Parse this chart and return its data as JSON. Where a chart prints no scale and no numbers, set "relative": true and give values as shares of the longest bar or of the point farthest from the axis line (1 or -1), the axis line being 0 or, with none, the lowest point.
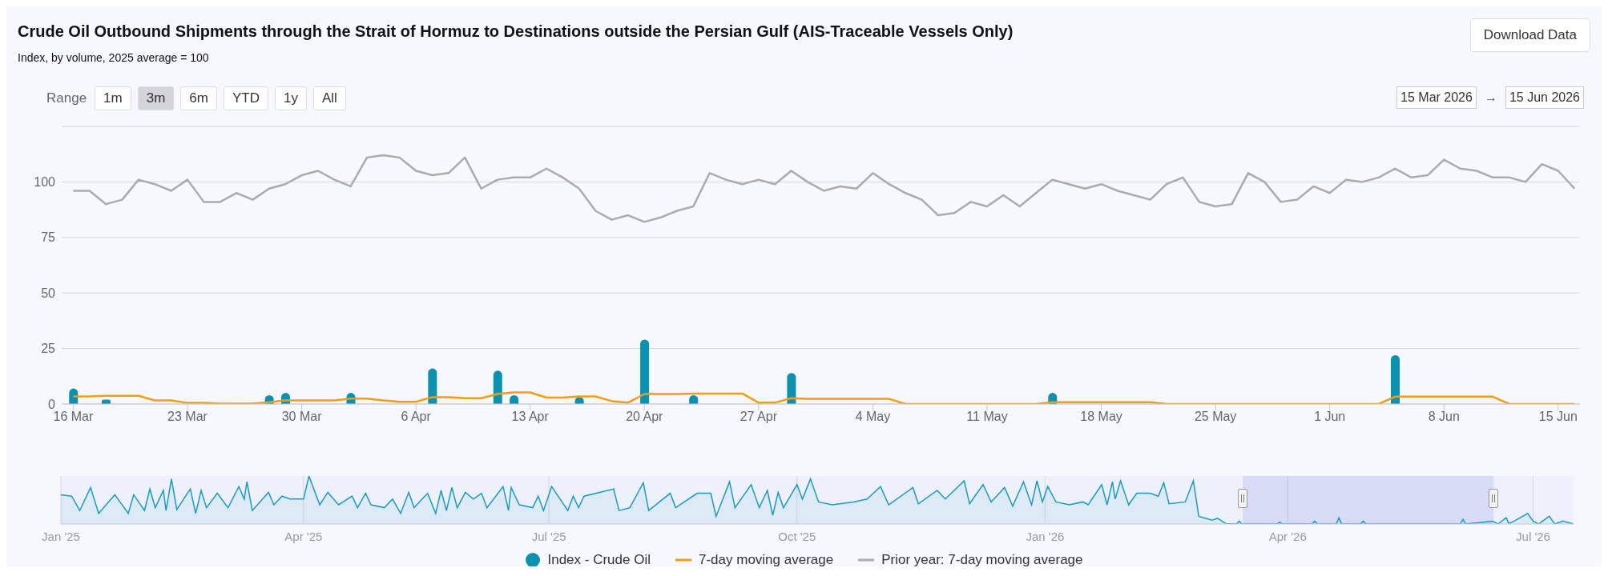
{
  "chart_data": [
    {
      "type": "bar",
      "title": "Crude Oil Outbound Shipments through the Strait of Hormuz to Destinations outside the Persian Gulf (AIS-Traceable Vessels Only)",
      "subtitle": "Index, by volume, 2025 average = 100",
      "annotations": [
        "Download Data",
        "Range",
        "1m",
        "3m",
        "6m",
        "YTD",
        "1y",
        "All",
        "15 Mar 2026",
        "→",
        "15 Jun 2026"
      ],
      "x": [
        "2026-03-16",
        "2026-03-17",
        "2026-03-18",
        "2026-03-19",
        "2026-03-20",
        "2026-03-21",
        "2026-03-22",
        "2026-03-23",
        "2026-03-24",
        "2026-03-25",
        "2026-03-26",
        "2026-03-27",
        "2026-03-28",
        "2026-03-29",
        "2026-03-30",
        "2026-03-31",
        "2026-04-01",
        "2026-04-02",
        "2026-04-03",
        "2026-04-04",
        "2026-04-05",
        "2026-04-06",
        "2026-04-07",
        "2026-04-08",
        "2026-04-09",
        "2026-04-10",
        "2026-04-11",
        "2026-04-12",
        "2026-04-13",
        "2026-04-14",
        "2026-04-15",
        "2026-04-16",
        "2026-04-17",
        "2026-04-18",
        "2026-04-19",
        "2026-04-20",
        "2026-04-21",
        "2026-04-22",
        "2026-04-23",
        "2026-04-24",
        "2026-04-25",
        "2026-04-26",
        "2026-04-27",
        "2026-04-28",
        "2026-04-29",
        "2026-04-30",
        "2026-05-01",
        "2026-05-02",
        "2026-05-03",
        "2026-05-04",
        "2026-05-05",
        "2026-05-06",
        "2026-05-07",
        "2026-05-08",
        "2026-05-09",
        "2026-05-10",
        "2026-05-11",
        "2026-05-12",
        "2026-05-13",
        "2026-05-14",
        "2026-05-15",
        "2026-05-16",
        "2026-05-17",
        "2026-05-18",
        "2026-05-19",
        "2026-05-20",
        "2026-05-21",
        "2026-05-22",
        "2026-05-23",
        "2026-05-24",
        "2026-05-25",
        "2026-05-26",
        "2026-05-27",
        "2026-05-28",
        "2026-05-29",
        "2026-05-30",
        "2026-05-31",
        "2026-06-01",
        "2026-06-02",
        "2026-06-03",
        "2026-06-04",
        "2026-06-05",
        "2026-06-06",
        "2026-06-07",
        "2026-06-08",
        "2026-06-09",
        "2026-06-10",
        "2026-06-11",
        "2026-06-12",
        "2026-06-13",
        "2026-06-14",
        "2026-06-15",
        "2026-06-16"
      ],
      "series": [
        {
          "name": "Index - Crude Oil",
          "color": "#0b91b1",
          "values": [
            7,
            0,
            2,
            0,
            0,
            0,
            0,
            0,
            0,
            0,
            0,
            0,
            4,
            5,
            0,
            0,
            0,
            5,
            0,
            0,
            0,
            0,
            16,
            0,
            0,
            0,
            15,
            4,
            0,
            0,
            0,
            3,
            0,
            0,
            0,
            29,
            0,
            0,
            4,
            0,
            0,
            0,
            0,
            0,
            14,
            0,
            0,
            0,
            0,
            0,
            0,
            0,
            0,
            0,
            0,
            0,
            0,
            0,
            0,
            0,
            5,
            0,
            0,
            0,
            0,
            0,
            0,
            0,
            0,
            0,
            0,
            0,
            0,
            0,
            0,
            0,
            0,
            0,
            0,
            0,
            0,
            22,
            0,
            0,
            0,
            0,
            0,
            0,
            0,
            0,
            0,
            0,
            0
          ]
        },
        {
          "name": "7-day moving average",
          "type": "line",
          "color": "#f59c0f",
          "values": [
            3.4,
            3.4,
            3.7,
            3.7,
            3.7,
            1.6,
            1.6,
            0.5,
            0.5,
            0.2,
            0.2,
            0.2,
            0.8,
            1.6,
            1.6,
            1.6,
            1.6,
            2.4,
            2.4,
            1.6,
            1.0,
            1.0,
            3.1,
            3.1,
            2.6,
            2.6,
            4.5,
            5.2,
            5.2,
            2.9,
            2.9,
            3.4,
            3.4,
            1.3,
            0.6,
            4.5,
            4.5,
            4.5,
            4.7,
            4.7,
            4.7,
            4.7,
            0.6,
            0.6,
            2.6,
            2.3,
            2.3,
            2.3,
            2.3,
            2.3,
            2.3,
            0,
            0,
            0,
            0,
            0,
            0,
            0,
            0,
            0,
            0.8,
            0.8,
            0.8,
            0.8,
            0.8,
            0.8,
            0.8,
            0,
            0,
            0,
            0,
            0,
            0,
            0,
            0,
            0,
            0,
            0,
            0,
            0,
            0,
            3.3,
            3.3,
            3.3,
            3.3,
            3.3,
            3.3,
            3.3,
            0,
            0,
            0,
            0,
            0
          ]
        },
        {
          "name": "Prior year: 7-day moving average",
          "type": "line",
          "color": "#ababab",
          "values": [
            96,
            96,
            90,
            92,
            101,
            99,
            96,
            101,
            91,
            91,
            95,
            92,
            97,
            99,
            103,
            105,
            101,
            98,
            111,
            112,
            111,
            105,
            103,
            104,
            111,
            97,
            101,
            102,
            102,
            106,
            102,
            97,
            87,
            83,
            85,
            82,
            84,
            87,
            89,
            104,
            101,
            99,
            101,
            99,
            105,
            100,
            96,
            98,
            97,
            104,
            99,
            95,
            92,
            85,
            86,
            91,
            89,
            94,
            89,
            95,
            101,
            99,
            97,
            99,
            96,
            94,
            92,
            99,
            102,
            91,
            89,
            90,
            104,
            100,
            91,
            92,
            98,
            95,
            101,
            100,
            102,
            106,
            102,
            103,
            110,
            106,
            105,
            102,
            102,
            100,
            108,
            105,
            97
          ]
        }
      ],
      "xlim": [
        "2026-03-15T07:00",
        "2026-06-16T08:00"
      ],
      "xticks": [
        {
          "value": "2026-03-16",
          "label": "16 Mar"
        },
        {
          "value": "2026-03-23",
          "label": "23 Mar"
        },
        {
          "value": "2026-03-30",
          "label": "30 Mar"
        },
        {
          "value": "2026-04-06",
          "label": "6 Apr"
        },
        {
          "value": "2026-04-13",
          "label": "13 Apr"
        },
        {
          "value": "2026-04-20",
          "label": "20 Apr"
        },
        {
          "value": "2026-04-27",
          "label": "27 Apr"
        },
        {
          "value": "2026-05-04",
          "label": "4 May"
        },
        {
          "value": "2026-05-11",
          "label": "11 May"
        },
        {
          "value": "2026-05-18",
          "label": "18 May"
        },
        {
          "value": "2026-05-25",
          "label": "25 May"
        },
        {
          "value": "2026-06-01",
          "label": "1 Jun"
        },
        {
          "value": "2026-06-08",
          "label": "8 Jun"
        },
        {
          "value": "2026-06-15",
          "label": "15 Jun"
        }
      ],
      "ylim": [
        0,
        125
      ],
      "yticks": [
        0,
        25,
        50,
        75,
        100,
        {
          "value": 125,
          "label": null
        }
      ],
      "grid": "y",
      "legend": "bottom"
    },
    {
      "type": "area",
      "relative": true,
      "color": "#1a9bbf",
      "x": [
        "2025-01-01",
        "2025-01-05",
        "2025-01-08",
        "2025-01-12",
        "2025-01-15",
        "2025-01-21",
        "2025-01-26",
        "2025-01-28",
        "2025-02-01",
        "2025-02-03",
        "2025-02-05",
        "2025-02-08",
        "2025-02-09",
        "2025-02-11",
        "2025-02-13",
        "2025-02-18",
        "2025-02-20",
        "2025-02-22",
        "2025-02-24",
        "2025-02-28",
        "2025-03-04",
        "2025-03-08",
        "2025-03-10",
        "2025-03-11",
        "2025-03-13",
        "2025-03-19",
        "2025-03-21",
        "2025-03-24",
        "2025-03-27",
        "2025-04-01",
        "2025-04-03",
        "2025-04-07",
        "2025-04-10",
        "2025-04-14",
        "2025-04-19",
        "2025-04-21",
        "2025-04-24",
        "2025-04-26",
        "2025-05-01",
        "2025-05-04",
        "2025-05-07",
        "2025-05-10",
        "2025-05-12",
        "2025-05-17",
        "2025-05-20",
        "2025-05-22",
        "2025-05-24",
        "2025-05-26",
        "2025-05-28",
        "2025-05-31",
        "2025-06-03",
        "2025-06-06",
        "2025-06-08",
        "2025-06-14",
        "2025-06-16",
        "2025-06-17",
        "2025-06-20",
        "2025-06-25",
        "2025-06-27",
        "2025-06-29",
        "2025-07-02",
        "2025-07-08",
        "2025-07-10",
        "2025-07-12",
        "2025-07-14",
        "2025-07-25",
        "2025-07-27",
        "2025-07-31",
        "2025-08-05",
        "2025-08-07",
        "2025-08-15",
        "2025-08-17",
        "2025-08-25",
        "2025-08-30",
        "2025-09-01",
        "2025-09-06",
        "2025-09-08",
        "2025-09-14",
        "2025-09-17",
        "2025-09-20",
        "2025-09-22",
        "2025-09-24",
        "2025-09-26",
        "2025-10-01",
        "2025-10-03",
        "2025-10-06",
        "2025-10-09",
        "2025-10-14",
        "2025-10-22",
        "2025-10-27",
        "2025-11-01",
        "2025-11-04",
        "2025-11-13",
        "2025-11-15",
        "2025-11-22",
        "2025-11-25",
        "2025-12-02",
        "2025-12-04",
        "2025-12-09",
        "2025-12-12",
        "2025-12-17",
        "2025-12-20",
        "2025-12-24",
        "2025-12-27",
        "2025-12-29",
        "2025-12-31",
        "2026-01-02",
        "2026-01-05",
        "2026-01-10",
        "2026-01-15",
        "2026-01-17",
        "2026-01-22",
        "2026-01-24",
        "2026-01-26",
        "2026-01-27",
        "2026-01-29",
        "2026-02-01",
        "2026-02-04",
        "2026-02-09",
        "2026-02-12",
        "2026-02-14",
        "2026-02-16",
        "2026-02-22",
        "2026-02-25",
        "2026-02-27",
        "2026-03-04",
        "2026-03-06",
        "2026-03-09",
        "2026-03-13",
        "2026-03-14",
        "2026-03-15",
        "2026-03-28",
        "2026-03-29",
        "2026-03-30",
        "2026-04-10",
        "2026-04-11",
        "2026-04-12",
        "2026-04-19",
        "2026-04-20",
        "2026-04-21",
        "2026-04-28",
        "2026-04-29",
        "2026-04-30",
        "2026-06-04",
        "2026-06-05",
        "2026-06-06",
        "2026-06-16",
        "2026-06-18",
        "2026-06-21",
        "2026-06-22",
        "2026-06-24",
        "2026-06-29",
        "2026-07-01",
        "2026-07-03",
        "2026-07-07",
        "2026-07-09",
        "2026-07-12",
        "2026-07-16"
      ],
      "values": [
        0.61,
        0.58,
        0.28,
        0.76,
        0.22,
        0.61,
        0.22,
        0.61,
        0.28,
        0.73,
        0.34,
        0.7,
        0.28,
        0.94,
        0.3,
        0.73,
        0.22,
        0.7,
        0.34,
        0.64,
        0.34,
        0.78,
        0.52,
        0.88,
        0.28,
        0.66,
        0.4,
        0.58,
        0.52,
        0.52,
        1.0,
        0.4,
        0.66,
        0.4,
        0.58,
        0.34,
        0.64,
        0.4,
        0.34,
        0.52,
        0.22,
        0.66,
        0.34,
        0.64,
        0.22,
        0.7,
        0.28,
        0.76,
        0.34,
        0.66,
        0.52,
        0.64,
        0.34,
        0.78,
        0.28,
        0.76,
        0.4,
        0.34,
        0.58,
        0.28,
        0.78,
        0.28,
        0.58,
        0.34,
        0.58,
        0.73,
        0.28,
        0.34,
        0.86,
        0.28,
        0.64,
        0.34,
        0.64,
        0.64,
        0.16,
        0.88,
        0.34,
        0.82,
        0.34,
        0.7,
        0.18,
        0.66,
        0.34,
        0.82,
        0.52,
        0.94,
        0.46,
        0.4,
        0.46,
        0.52,
        0.78,
        0.4,
        0.76,
        0.42,
        0.7,
        0.52,
        0.9,
        0.42,
        0.82,
        0.46,
        0.76,
        0.37,
        0.88,
        0.4,
        0.9,
        0.46,
        0.78,
        0.46,
        0.4,
        0.46,
        0.4,
        0.82,
        0.4,
        0.88,
        0.52,
        0.9,
        0.4,
        0.64,
        0.64,
        0.58,
        0.86,
        0.42,
        0.46,
        0.9,
        0.16,
        0.08,
        0.12,
        0.01,
        0,
        0.06,
        0,
        0,
        0.04,
        0,
        0,
        0.06,
        0,
        0,
        0.13,
        0,
        0,
        0.06,
        0,
        0,
        0.1,
        0,
        0.06,
        0,
        0.13,
        0.01,
        0.06,
        0.22,
        0.06,
        0,
        0.16,
        0,
        0.06,
        0
      ],
      "xlim": [
        "2025-01-01",
        "2026-07-16"
      ],
      "xticks": [
        {
          "value": "2025-01-01",
          "label": "Jan '25"
        },
        {
          "value": "2025-04-01",
          "label": "Apr '25"
        },
        {
          "value": "2025-07-01",
          "label": "Jul '25"
        },
        {
          "value": "2025-10-01",
          "label": "Oct '25"
        },
        {
          "value": "2026-01-01",
          "label": "Jan '26"
        },
        {
          "value": "2026-04-01",
          "label": "Apr '26"
        },
        {
          "value": "2026-07-01",
          "label": "Jul '26"
        }
      ],
      "bands": [
        {
          "axis": "x",
          "from": "2026-03-15T07:00",
          "to": "2026-06-16T08:00",
          "color": "#6e78dc"
        }
      ],
      "grid": "x"
    }
  ]
}
